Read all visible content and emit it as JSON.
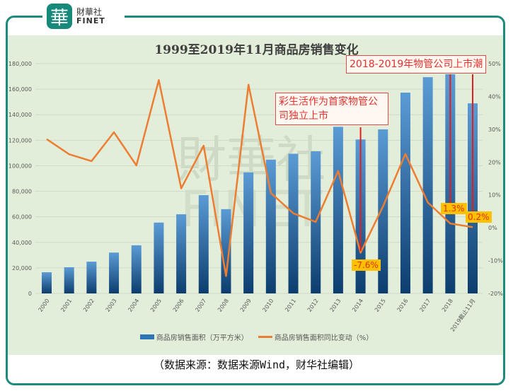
{
  "brand": {
    "mark": "華",
    "name_cn": "財華社",
    "name_en": "FINET",
    "color": "#17897b"
  },
  "chart_data": {
    "type": "bar+line",
    "title": "1999至2019年11月商品房销售变化",
    "categories": [
      "2000",
      "2001",
      "2002",
      "2003",
      "2004",
      "2005",
      "2006",
      "2007",
      "2008",
      "2009",
      "2010",
      "2011",
      "2012",
      "2013",
      "2014",
      "2015",
      "2016",
      "2017",
      "2018",
      "2019截止11月"
    ],
    "series": [
      {
        "name": "商品房销售面积（万平方米）",
        "type": "bar",
        "axis": "left",
        "color": "#2e75b6",
        "values": [
          16600,
          20500,
          24900,
          32000,
          37700,
          55500,
          62000,
          77000,
          66000,
          94800,
          104800,
          109400,
          111300,
          130500,
          120600,
          128500,
          157300,
          169400,
          171700,
          148900
        ]
      },
      {
        "name": "商品房销售面积同比变动（%）",
        "type": "line",
        "axis": "right",
        "color": "#ed7d31",
        "values": [
          27,
          22.4,
          20.3,
          29.1,
          19,
          45,
          12,
          25,
          -14.7,
          43.6,
          10.6,
          4.4,
          1.8,
          17.3,
          -7.6,
          6.5,
          22.5,
          7.7,
          1.3,
          0.2
        ]
      }
    ],
    "y_left": {
      "range": [
        0,
        180000
      ],
      "ticks": [
        "0",
        "20,000",
        "40,000",
        "60,000",
        "80,000",
        "100,000",
        "120,000",
        "140,000",
        "160,000",
        "180,000"
      ]
    },
    "y_right": {
      "range": [
        -20,
        50
      ],
      "ticks": [
        "-20%",
        "-10%",
        "0%",
        "10%",
        "20%",
        "30%",
        "40%",
        "50%"
      ]
    },
    "grid": true,
    "legend": "bottom",
    "data_labels": [
      {
        "category": "2014",
        "text": "-7.6%"
      },
      {
        "category": "2018",
        "text": "1.3%"
      },
      {
        "category": "2019截止11月",
        "text": "0.2%"
      }
    ],
    "annotations": [
      {
        "text": "彩生活作为首家物管公司独立上市",
        "category": "2014"
      },
      {
        "text": "2018-2019年物管公司上市潮",
        "categories": [
          "2018",
          "2019截止11月"
        ]
      }
    ],
    "watermark": "財華社 FINET"
  },
  "source": "（数据来源：数据来源Wind，财华社编辑）"
}
